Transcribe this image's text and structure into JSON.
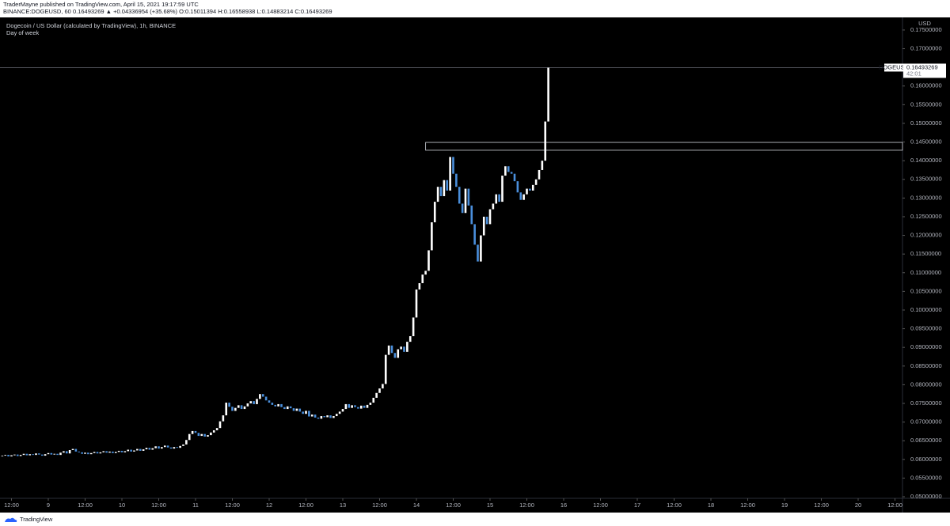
{
  "header": {
    "publisher": "TraderMayne published on TradingView.com, April 15, 2021 19:17:59 UTC",
    "ticker_line": "BINANCE:DOGEUSD, 60 0.16493269 ▲ +0.04336954 (+35.68%) O:0.15011394 H:0.16558938 L:0.14883214 C:0.16493269"
  },
  "footer": {
    "brand": "TradingView"
  },
  "chart_data": {
    "type": "candlestick",
    "title": "Dogecoin / US Dollar (calculated by TradingView), 1h, BINANCE",
    "subtitle": "Day of week",
    "y_unit": "USD",
    "symbol": "DOGEUSD",
    "last_price": 0.16493269,
    "countdown": "42:01",
    "up_color": "#ffffff",
    "down_color": "#4a8fdc",
    "zone": {
      "x": 147,
      "low": 0.1428,
      "high": 0.1449
    },
    "x": [
      9,
      10,
      11,
      12,
      13,
      14,
      15,
      16,
      17,
      18,
      19,
      20,
      21,
      22,
      23,
      24,
      25,
      26,
      27,
      28,
      29,
      30,
      31,
      32,
      33,
      34,
      35,
      36,
      37,
      38,
      39,
      40,
      41,
      42,
      43,
      44,
      45,
      46,
      47,
      48,
      49,
      50,
      51,
      52,
      53,
      54,
      55,
      56,
      57,
      58,
      59,
      60,
      61,
      62,
      63,
      64,
      65,
      66,
      67,
      68,
      69,
      70,
      71,
      72,
      73,
      74,
      75,
      76,
      77,
      78,
      79,
      80,
      81,
      82,
      83,
      84,
      85,
      86,
      87,
      88,
      89,
      90,
      91,
      92,
      93,
      94,
      95,
      96,
      97,
      98,
      99,
      100,
      101,
      102,
      103,
      104,
      105,
      106,
      107,
      108,
      109,
      110,
      111,
      112,
      113,
      114,
      115,
      116,
      117,
      118,
      119,
      120,
      121,
      122,
      123,
      124,
      125,
      126,
      127,
      128,
      129,
      130,
      131,
      132,
      133,
      134,
      135,
      136,
      137,
      138,
      139,
      140,
      141,
      142,
      143,
      144,
      145,
      146,
      147,
      148,
      149,
      150,
      151,
      152,
      153,
      154,
      155,
      156,
      157,
      158,
      159,
      160,
      161,
      162,
      163,
      164,
      165,
      166,
      167,
      168,
      169,
      170,
      171,
      172,
      173,
      174,
      175,
      176,
      177,
      178,
      179,
      180,
      181,
      182,
      183,
      184,
      185,
      186,
      187
    ],
    "close": [
      0.061,
      0.0612,
      0.0608,
      0.0611,
      0.0613,
      0.0609,
      0.0612,
      0.0615,
      0.0611,
      0.0614,
      0.0612,
      0.0616,
      0.0613,
      0.061,
      0.0614,
      0.0617,
      0.0613,
      0.0615,
      0.0612,
      0.0618,
      0.0622,
      0.0616,
      0.0625,
      0.0628,
      0.0621,
      0.0619,
      0.0615,
      0.0618,
      0.0614,
      0.0617,
      0.062,
      0.0616,
      0.0619,
      0.0622,
      0.0618,
      0.0621,
      0.0617,
      0.062,
      0.0623,
      0.0619,
      0.0622,
      0.0626,
      0.0621,
      0.0624,
      0.0628,
      0.0623,
      0.0627,
      0.0631,
      0.0626,
      0.063,
      0.0635,
      0.0629,
      0.0633,
      0.0637,
      0.0632,
      0.0629,
      0.0633,
      0.0631,
      0.0636,
      0.064,
      0.0652,
      0.0668,
      0.0676,
      0.0671,
      0.0663,
      0.0668,
      0.0661,
      0.0665,
      0.0672,
      0.0678,
      0.0684,
      0.0702,
      0.0718,
      0.0752,
      0.0741,
      0.073,
      0.0738,
      0.0745,
      0.0735,
      0.0742,
      0.075,
      0.0756,
      0.0748,
      0.0762,
      0.0775,
      0.0768,
      0.0758,
      0.0752,
      0.0746,
      0.0742,
      0.0748,
      0.074,
      0.0735,
      0.0742,
      0.0737,
      0.073,
      0.0736,
      0.0728,
      0.0722,
      0.073,
      0.0715,
      0.072,
      0.0712,
      0.0709,
      0.0716,
      0.0713,
      0.0718,
      0.0711,
      0.0716,
      0.0722,
      0.0728,
      0.0735,
      0.0748,
      0.0738,
      0.0745,
      0.074,
      0.0736,
      0.0744,
      0.0738,
      0.0746,
      0.0752,
      0.0765,
      0.0778,
      0.079,
      0.0802,
      0.088,
      0.0905,
      0.0885,
      0.0872,
      0.0895,
      0.0902,
      0.0888,
      0.0915,
      0.093,
      0.098,
      0.1055,
      0.1072,
      0.1095,
      0.1105,
      0.116,
      0.1235,
      0.129,
      0.133,
      0.1305,
      0.1348,
      0.132,
      0.141,
      0.1365,
      0.133,
      0.1285,
      0.126,
      0.1325,
      0.128,
      0.123,
      0.1175,
      0.113,
      0.12,
      0.125,
      0.123,
      0.127,
      0.1285,
      0.131,
      0.129,
      0.136,
      0.1385,
      0.137,
      0.1365,
      0.1345,
      0.1315,
      0.1295,
      0.131,
      0.1325,
      0.132,
      0.1335,
      0.135,
      0.1375,
      0.14,
      0.1505,
      0.1649
    ],
    "xlim": [
      8.26,
      302.45
    ],
    "xticks": [
      {
        "value": 12,
        "label": "12:00"
      },
      {
        "value": 24,
        "label": "9"
      },
      {
        "value": 36,
        "label": "12:00"
      },
      {
        "value": 48,
        "label": "10"
      },
      {
        "value": 60,
        "label": "12:00"
      },
      {
        "value": 72,
        "label": "11"
      },
      {
        "value": 84,
        "label": "12:00"
      },
      {
        "value": 96,
        "label": "12"
      },
      {
        "value": 108,
        "label": "12:00"
      },
      {
        "value": 120,
        "label": "13"
      },
      {
        "value": 132,
        "label": "12:00"
      },
      {
        "value": 144,
        "label": "14"
      },
      {
        "value": 156,
        "label": "12:00"
      },
      {
        "value": 168,
        "label": "15"
      },
      {
        "value": 180,
        "label": "12:00"
      },
      {
        "value": 192,
        "label": "16"
      },
      {
        "value": 204,
        "label": "12:00"
      },
      {
        "value": 216,
        "label": "17"
      },
      {
        "value": 228,
        "label": "12:00"
      },
      {
        "value": 240,
        "label": "18"
      },
      {
        "value": 252,
        "label": "12:00"
      },
      {
        "value": 264,
        "label": "19"
      },
      {
        "value": 276,
        "label": "12:00"
      },
      {
        "value": 288,
        "label": "20"
      },
      {
        "value": 300,
        "label": "12:00"
      }
    ],
    "ylim": [
      0.0464,
      0.1788
    ],
    "yticks": [
      {
        "value": 0.05,
        "label": "0.05000000"
      },
      {
        "value": 0.055,
        "label": "0.05500000"
      },
      {
        "value": 0.06,
        "label": "0.06000000"
      },
      {
        "value": 0.065,
        "label": "0.06500000"
      },
      {
        "value": 0.07,
        "label": "0.07000000"
      },
      {
        "value": 0.075,
        "label": "0.07500000"
      },
      {
        "value": 0.08,
        "label": "0.08000000"
      },
      {
        "value": 0.085,
        "label": "0.08500000"
      },
      {
        "value": 0.09,
        "label": "0.09000000"
      },
      {
        "value": 0.095,
        "label": "0.09500000"
      },
      {
        "value": 0.1,
        "label": "0.10000000"
      },
      {
        "value": 0.105,
        "label": "0.10500000"
      },
      {
        "value": 0.11,
        "label": "0.11000000"
      },
      {
        "value": 0.115,
        "label": "0.11500000"
      },
      {
        "value": 0.12,
        "label": "0.12000000"
      },
      {
        "value": 0.125,
        "label": "0.12500000"
      },
      {
        "value": 0.13,
        "label": "0.13000000"
      },
      {
        "value": 0.135,
        "label": "0.13500000"
      },
      {
        "value": 0.14,
        "label": "0.14000000"
      },
      {
        "value": 0.145,
        "label": "0.14500000"
      },
      {
        "value": 0.15,
        "label": "0.15000000"
      },
      {
        "value": 0.155,
        "label": "0.15500000"
      },
      {
        "value": 0.16,
        "label": "0.16000000"
      },
      {
        "value": 0.165,
        "label": "0.16500000"
      },
      {
        "value": 0.17,
        "label": "0.17000000"
      },
      {
        "value": 0.175,
        "label": "0.17500000"
      }
    ]
  }
}
